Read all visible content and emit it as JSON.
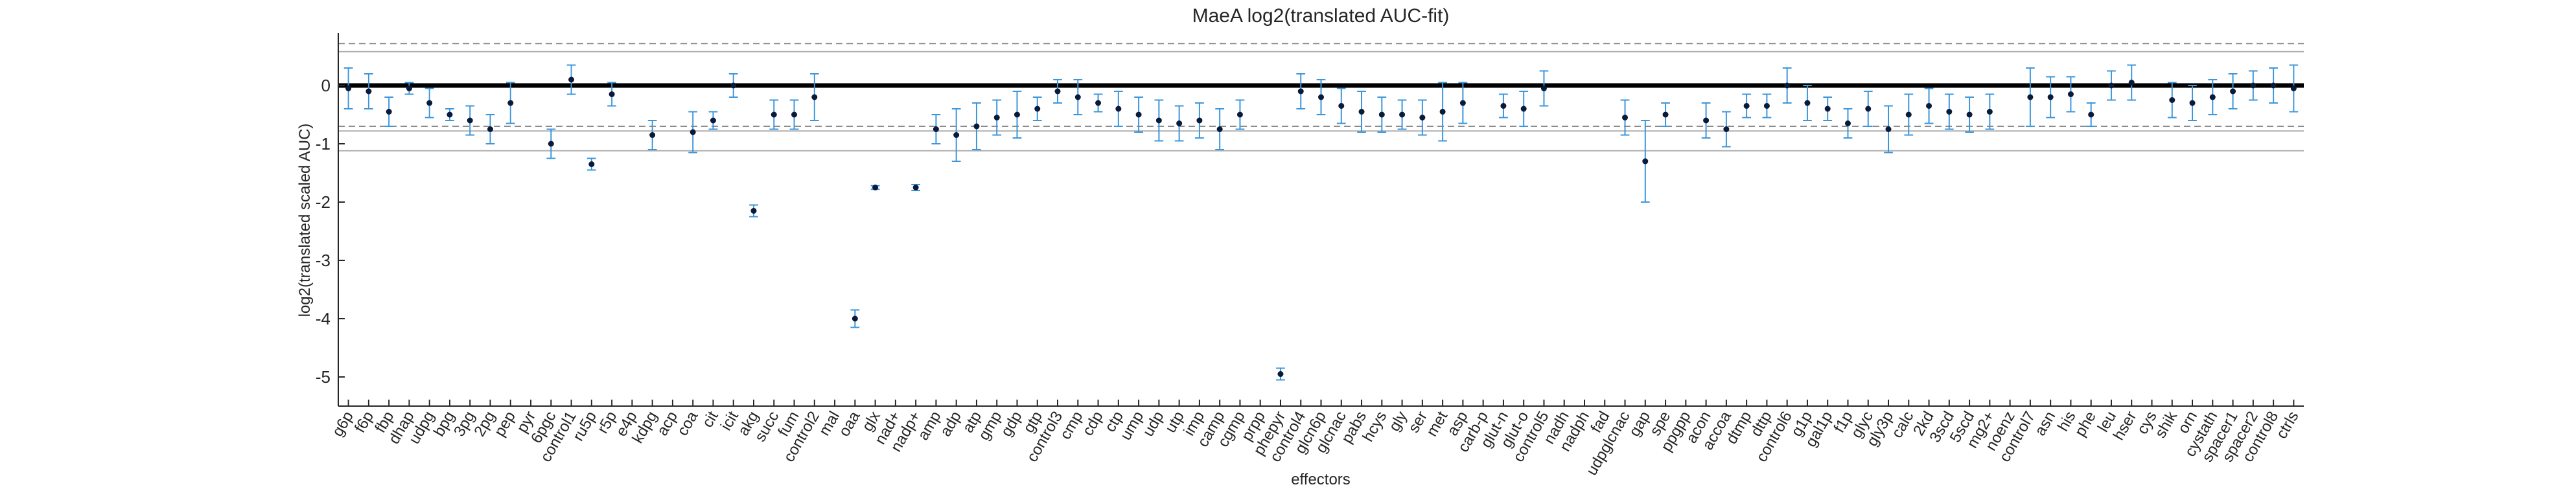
{
  "chart_data": {
    "type": "errorbar",
    "title": "MaeA log2(translated AUC-fit)",
    "x_label": "effectors",
    "y_label": "log2(translated scaled AUC)",
    "categories": [
      "g6p",
      "f6p",
      "fbp",
      "dhap",
      "udpg",
      "bpg",
      "3pg",
      "2pg",
      "pep",
      "pyr",
      "6pgc",
      "control1",
      "ru5p",
      "r5p",
      "e4p",
      "kdpg",
      "acp",
      "coa",
      "cit",
      "icit",
      "akg",
      "succ",
      "fum",
      "control2",
      "mal",
      "oaa",
      "glx",
      "nad+",
      "nadp+",
      "amp",
      "adp",
      "atp",
      "gmp",
      "gdp",
      "gtp",
      "control3",
      "cmp",
      "cdp",
      "ctp",
      "ump",
      "udp",
      "utp",
      "imp",
      "camp",
      "cgmp",
      "prpp",
      "phepyr",
      "control4",
      "glcn6p",
      "glcnac",
      "pabs",
      "hcys",
      "gly",
      "ser",
      "met",
      "asp",
      "carb-p",
      "glut-n",
      "glut-o",
      "control5",
      "nadh",
      "nadph",
      "fad",
      "udpglcnac",
      "gap",
      "spe",
      "ppgpp",
      "acon",
      "accoa",
      "dtmp",
      "dttp",
      "control6",
      "g1p",
      "gal1p",
      "f1p",
      "glyc",
      "gly3p",
      "calc",
      "2kd",
      "3scd",
      "5scd",
      "mg2+",
      "noenz",
      "control7",
      "asn",
      "his",
      "phe",
      "leu",
      "hser",
      "cys",
      "shik",
      "orn",
      "cystath",
      "spacer1",
      "spacer2",
      "control8",
      "ctrls"
    ],
    "values": [
      -0.05,
      -0.1,
      -0.45,
      -0.05,
      -0.3,
      -0.5,
      -0.6,
      -0.75,
      -0.3,
      null,
      -1.0,
      0.1,
      -1.35,
      -0.15,
      null,
      -0.85,
      null,
      -0.8,
      -0.6,
      0.0,
      -2.15,
      -0.5,
      -0.5,
      -0.2,
      null,
      -4.0,
      -1.75,
      null,
      -1.75,
      -0.75,
      -0.85,
      -0.7,
      -0.55,
      -0.5,
      -0.4,
      -0.1,
      -0.2,
      -0.3,
      -0.4,
      -0.5,
      -0.6,
      -0.65,
      -0.6,
      -0.75,
      -0.5,
      null,
      -4.95,
      -0.1,
      -0.2,
      -0.35,
      -0.45,
      -0.5,
      -0.5,
      -0.55,
      -0.45,
      -0.3,
      null,
      -0.35,
      -0.4,
      -0.05,
      null,
      null,
      null,
      -0.55,
      -1.3,
      -0.5,
      null,
      -0.6,
      -0.75,
      -0.35,
      -0.35,
      0.0,
      -0.3,
      -0.4,
      -0.65,
      -0.4,
      -0.75,
      -0.5,
      -0.35,
      -0.45,
      -0.5,
      -0.45,
      null,
      -0.2,
      -0.2,
      -0.15,
      -0.5,
      0.0,
      0.05,
      null,
      -0.25,
      -0.3,
      -0.2,
      -0.1,
      0.0,
      0.0,
      -0.05
    ],
    "errors": [
      0.35,
      0.3,
      0.25,
      0.1,
      0.25,
      0.1,
      0.25,
      0.25,
      0.35,
      null,
      0.25,
      0.25,
      0.1,
      0.2,
      null,
      0.25,
      null,
      0.35,
      0.15,
      0.2,
      0.1,
      0.25,
      0.25,
      0.4,
      null,
      0.15,
      0.03,
      null,
      0.05,
      0.25,
      0.45,
      0.4,
      0.3,
      0.4,
      0.2,
      0.2,
      0.3,
      0.15,
      0.3,
      0.3,
      0.35,
      0.3,
      0.3,
      0.35,
      0.25,
      null,
      0.1,
      0.3,
      0.3,
      0.3,
      0.35,
      0.3,
      0.25,
      0.3,
      0.5,
      0.35,
      null,
      0.2,
      0.3,
      0.3,
      null,
      null,
      null,
      0.3,
      0.7,
      0.2,
      null,
      0.3,
      0.3,
      0.2,
      0.2,
      0.3,
      0.3,
      0.2,
      0.25,
      0.3,
      0.4,
      0.35,
      0.3,
      0.3,
      0.3,
      0.3,
      null,
      0.5,
      0.35,
      0.3,
      0.2,
      0.25,
      0.3,
      null,
      0.3,
      0.3,
      0.3,
      0.3,
      0.25,
      0.3,
      0.4
    ],
    "ylim": [
      -5.5,
      0.9
    ],
    "yticks": [
      -5,
      -4,
      -3,
      -2,
      -1,
      0
    ],
    "reference_lines": [
      {
        "value": 0.72,
        "style": "dashed"
      },
      {
        "value": 0.58,
        "style": "solid"
      },
      {
        "value": 0,
        "style": "bold"
      },
      {
        "value": -0.7,
        "style": "dashed"
      },
      {
        "value": -0.78,
        "style": "solid"
      },
      {
        "value": -1.12,
        "style": "solid"
      }
    ],
    "error_color": "#3a96dd",
    "point_color": "#0b1a3a",
    "missing_color": "#cccccc"
  }
}
